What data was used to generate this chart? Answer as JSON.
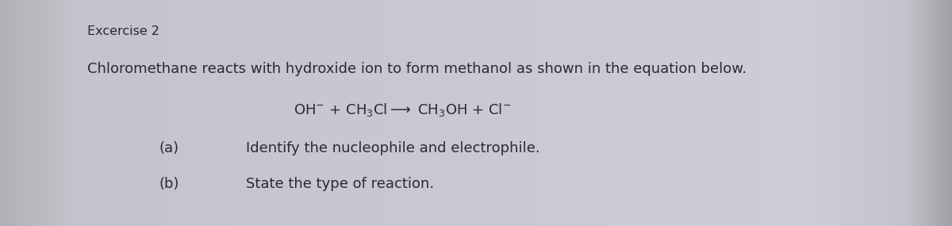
{
  "background_color": "#c8c8cc",
  "center_background": "#d8d8dc",
  "text_color": "#2a2a35",
  "title": "Excercise 2",
  "description": "Chloromethane reacts with hydroxide ion to form methanol as shown in the equation below.",
  "equation": "OH$^{-}$ + CH$_{3}$Cl——→ CH$_{3}$OH + Cl$^{-}$",
  "items": [
    {
      "label": "(a)",
      "text": "Identify the nucleophile and electrophile."
    },
    {
      "label": "(b)",
      "text": "State the type of reaction."
    }
  ],
  "title_fontsize": 11.5,
  "body_fontsize": 13,
  "equation_fontsize": 13,
  "item_fontsize": 13,
  "fig_width": 12.0,
  "fig_height": 2.85,
  "dpi": 100
}
